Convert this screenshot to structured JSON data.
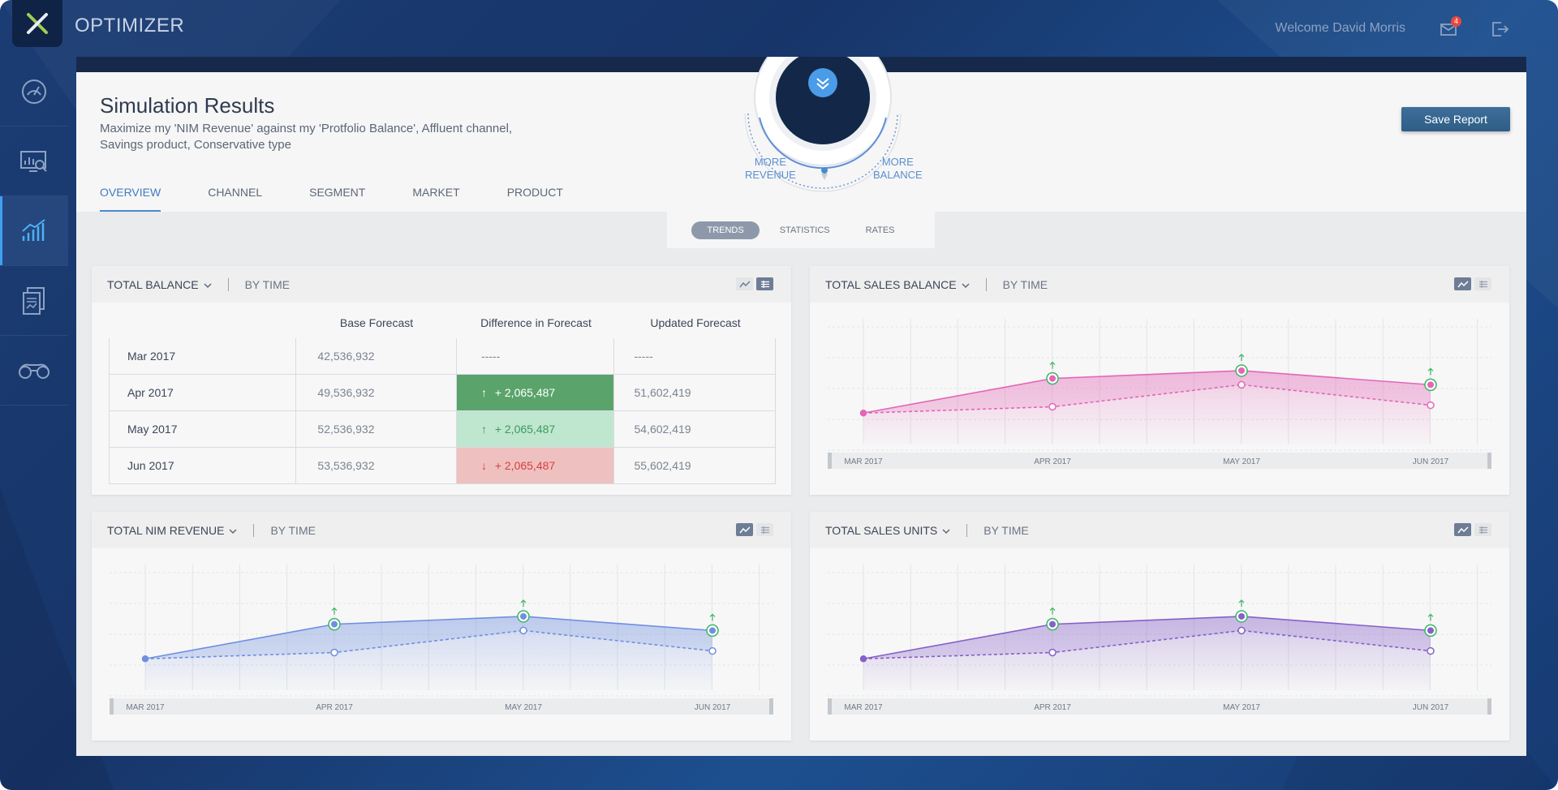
{
  "app": {
    "title": "OPTIMIZER",
    "logo_letter": "X",
    "welcome": "Welcome David Morris",
    "mail_count": "4"
  },
  "sidebar": {
    "items": [
      {
        "icon": "speedometer-icon",
        "active": false
      },
      {
        "icon": "analytics-search-icon",
        "active": false
      },
      {
        "icon": "bar-trend-icon",
        "active": true
      },
      {
        "icon": "reports-icon",
        "active": false
      },
      {
        "icon": "binoculars-icon",
        "active": false
      }
    ]
  },
  "header": {
    "title": "Simulation Results",
    "description": "Maximize my 'NIM Revenue' against my 'Protfolio Balance', Affluent channel, Savings product, Conservative type",
    "save_label": "Save Report",
    "dial_left": "MORE\nREVENUE",
    "dial_right": "MORE\nBALANCE",
    "tabs": [
      "OVERVIEW",
      "CHANNEL",
      "SEGMENT",
      "MARKET",
      "PRODUCT"
    ],
    "active_tab": "OVERVIEW"
  },
  "subtabs": {
    "items": [
      "TRENDS",
      "STATISTICS",
      "RATES"
    ],
    "active": "TRENDS"
  },
  "cards": {
    "balance": {
      "title": "TOTAL BALANCE",
      "subtitle": "BY TIME",
      "columns": [
        "",
        "Base Forecast",
        "Difference in Forecast",
        "Updated Forecast"
      ],
      "rows": [
        {
          "period": "Mar 2017",
          "base": "42,536,932",
          "diff": "-----",
          "updated": "-----",
          "state": "neutral",
          "arrow": ""
        },
        {
          "period": "Apr 2017",
          "base": "49,536,932",
          "diff": "+ 2,065,487",
          "updated": "51,602,419",
          "state": "up-strong",
          "arrow": "↑"
        },
        {
          "period": "May 2017",
          "base": "52,536,932",
          "diff": "+ 2,065,487",
          "updated": "54,602,419",
          "state": "up-light",
          "arrow": "↑"
        },
        {
          "period": "Jun 2017",
          "base": "53,536,932",
          "diff": "+ 2,065,487",
          "updated": "55,602,419",
          "state": "down",
          "arrow": "↓"
        }
      ]
    },
    "sales_balance": {
      "title": "TOTAL SALES BALANCE",
      "subtitle": "BY TIME"
    },
    "nim_revenue": {
      "title": "TOTAL NIM REVENUE",
      "subtitle": "BY TIME"
    },
    "sales_units": {
      "title": "TOTAL SALES UNITS",
      "subtitle": "BY TIME"
    }
  },
  "chart_data": [
    {
      "type": "area",
      "id": "sales_balance",
      "categories": [
        "MAR 2017",
        "APR 2017",
        "MAY 2017",
        "JUN 2017"
      ],
      "series": [
        {
          "values": [
            20,
            42,
            47,
            38
          ],
          "style": "solid"
        },
        {
          "values": [
            20,
            24,
            38,
            25
          ],
          "style": "dashed"
        }
      ],
      "ylim": [
        0,
        80
      ],
      "color": "#e366b7"
    },
    {
      "type": "area",
      "id": "nim_revenue",
      "categories": [
        "MAR 2017",
        "APR 2017",
        "MAY 2017",
        "JUN 2017"
      ],
      "series": [
        {
          "values": [
            20,
            42,
            47,
            38
          ],
          "style": "solid"
        },
        {
          "values": [
            20,
            24,
            38,
            25
          ],
          "style": "dashed"
        }
      ],
      "ylim": [
        0,
        80
      ],
      "color": "#6f8fe0"
    },
    {
      "type": "area",
      "id": "sales_units",
      "categories": [
        "MAR 2017",
        "APR 2017",
        "MAY 2017",
        "JUN 2017"
      ],
      "series": [
        {
          "values": [
            20,
            42,
            47,
            38
          ],
          "style": "solid"
        },
        {
          "values": [
            20,
            24,
            38,
            25
          ],
          "style": "dashed"
        }
      ],
      "ylim": [
        0,
        80
      ],
      "color": "#8560c8"
    }
  ],
  "colors": {
    "accent": "#4a8ad0",
    "up_marker": "#3cb565"
  }
}
